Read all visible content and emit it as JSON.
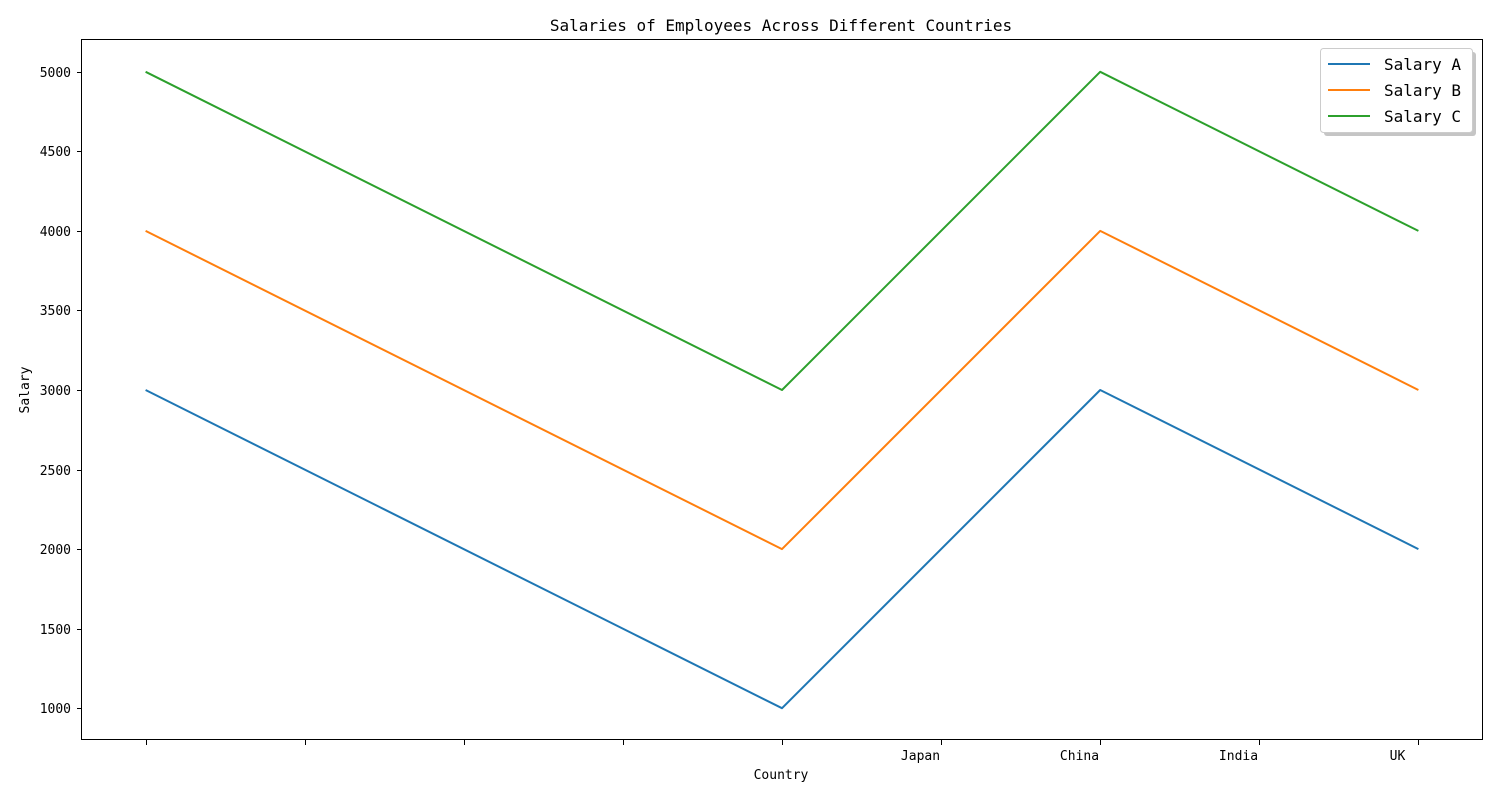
{
  "chart_data": {
    "type": "line",
    "title": "Salaries of Employees Across Different Countries",
    "xlabel": "Country",
    "ylabel": "Salary",
    "x_tick_labels": [
      "",
      "",
      "",
      "",
      "",
      "Japan",
      "China",
      "India",
      "UK"
    ],
    "series": [
      {
        "name": "Salary A",
        "color": "#1f77b4",
        "values": [
          3000,
          1000,
          3000,
          2000
        ]
      },
      {
        "name": "Salary B",
        "color": "#ff7f0e",
        "values": [
          4000,
          2000,
          4000,
          3000
        ]
      },
      {
        "name": "Salary C",
        "color": "#2ca02c",
        "values": [
          5000,
          3000,
          5000,
          4000
        ]
      }
    ],
    "series_x_positions": [
      0,
      4,
      6,
      8
    ],
    "yticks": [
      1000,
      1500,
      2000,
      2500,
      3000,
      3500,
      4000,
      4500,
      5000
    ],
    "ylim": [
      800,
      5200
    ],
    "xlim": [
      -0.4,
      8.4
    ],
    "grid": false,
    "legend_position": "top-right"
  }
}
